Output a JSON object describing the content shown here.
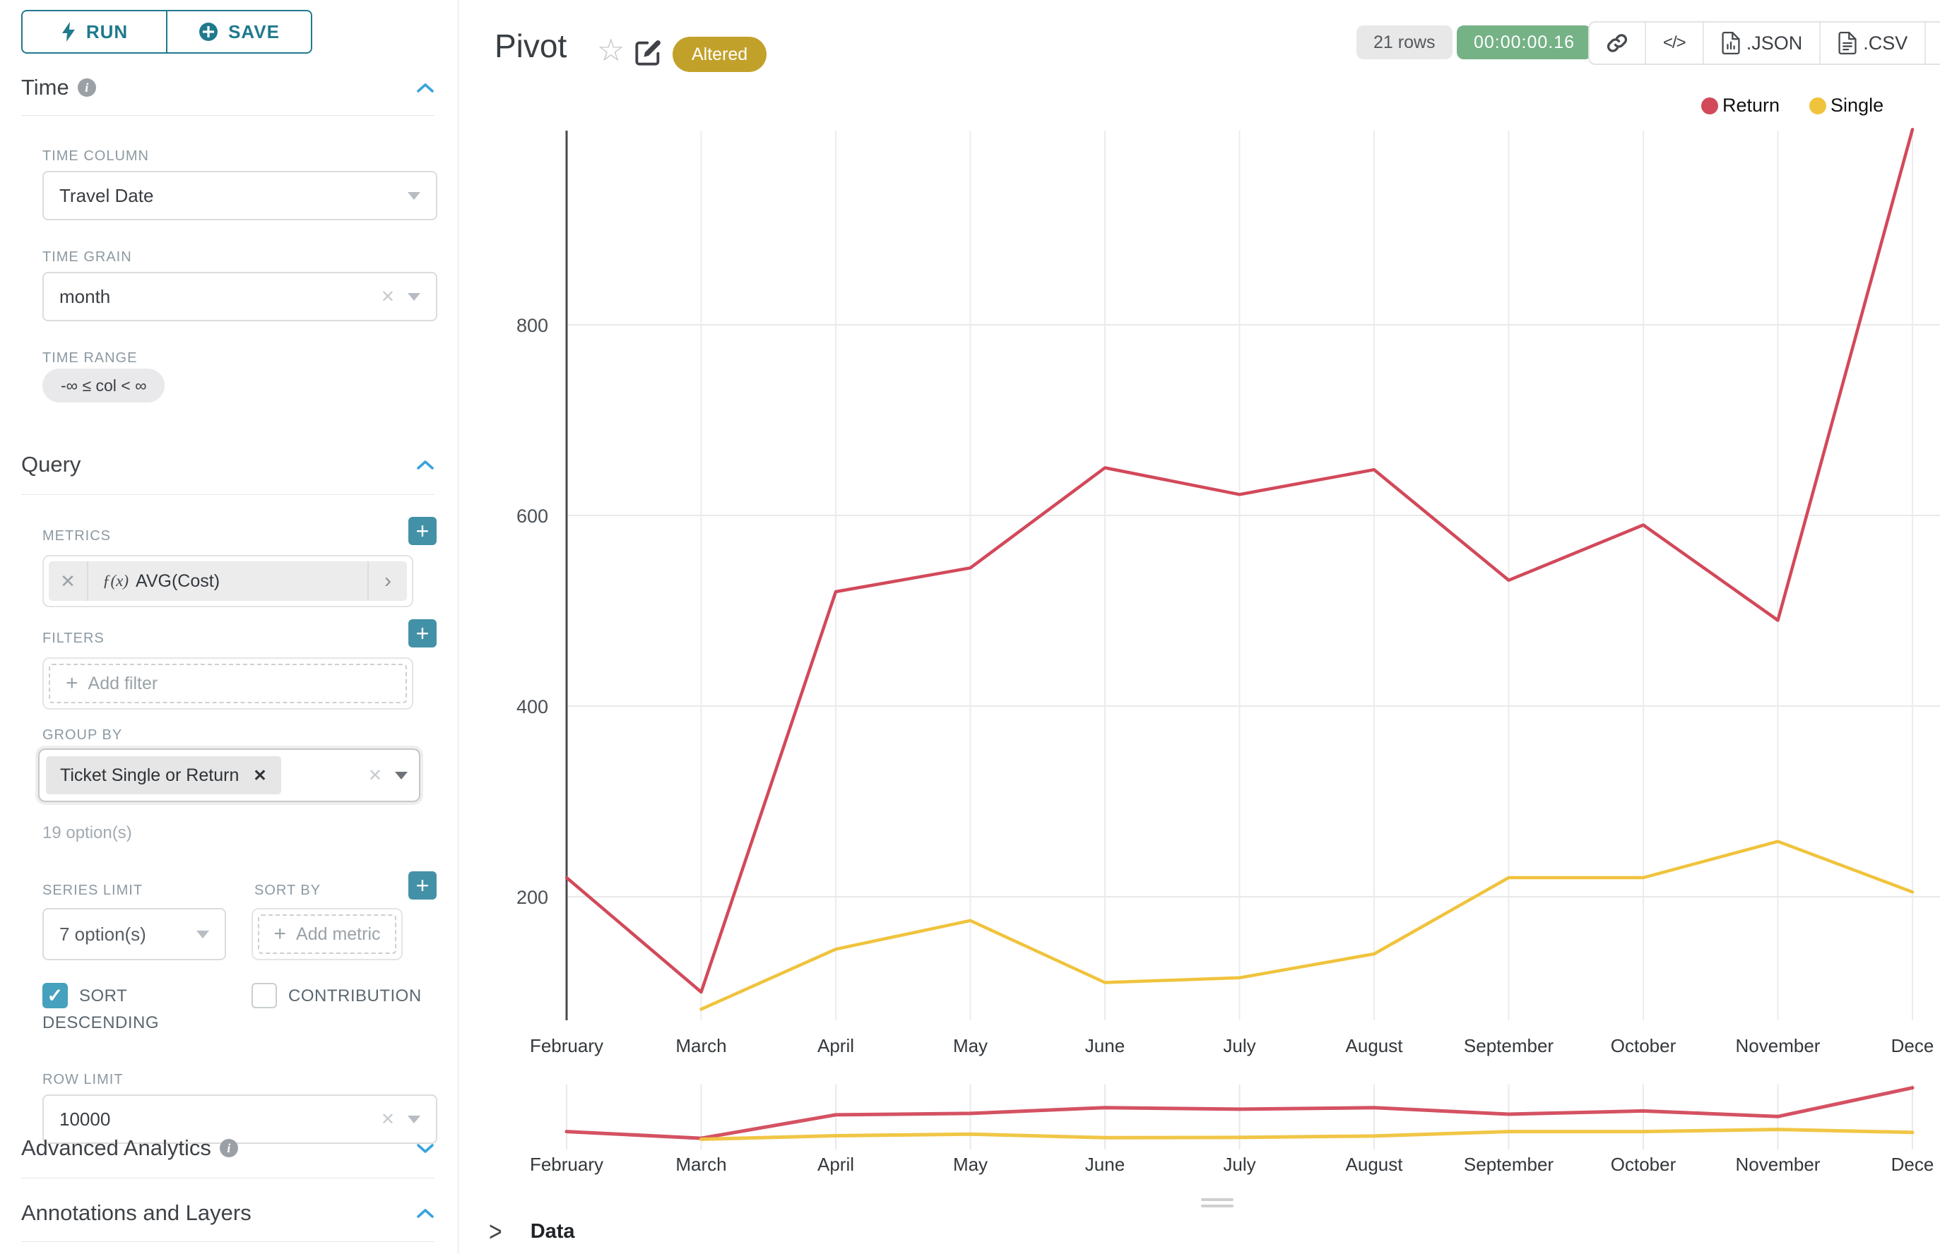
{
  "sidebar": {
    "run_label": "RUN",
    "save_label": "SAVE",
    "time_section": {
      "title": "Time"
    },
    "time_column": {
      "label": "TIME COLUMN",
      "value": "Travel Date"
    },
    "time_grain": {
      "label": "TIME GRAIN",
      "value": "month"
    },
    "time_range": {
      "label": "TIME RANGE",
      "value": "-∞ ≤ col < ∞"
    },
    "query_section": {
      "title": "Query"
    },
    "metrics": {
      "label": "METRICS",
      "metric_prefix": "ƒ(x)",
      "metric_name": "AVG(Cost)"
    },
    "filters": {
      "label": "FILTERS",
      "placeholder": "Add filter"
    },
    "group_by": {
      "label": "GROUP BY",
      "chip": "Ticket Single or Return",
      "hint": "19 option(s)"
    },
    "series_limit": {
      "label": "SERIES LIMIT",
      "value": "7 option(s)"
    },
    "sort_by": {
      "label": "SORT BY",
      "placeholder": "Add metric"
    },
    "sort_descending": {
      "label": "SORT DESCENDING",
      "checked": true
    },
    "contribution": {
      "label": "CONTRIBUTION",
      "checked": false
    },
    "row_limit": {
      "label": "ROW LIMIT",
      "value": "10000"
    },
    "advanced_analytics": {
      "title": "Advanced Analytics"
    },
    "annotations": {
      "title": "Annotations and Layers"
    }
  },
  "header": {
    "title": "Pivot",
    "altered_badge": "Altered",
    "rows_badge": "21 rows",
    "timer_badge": "00:00:00.16",
    "buttons": {
      "code_label": "</>",
      "json_label": ".JSON",
      "csv_label": ".CSV"
    }
  },
  "data_panel": {
    "title": "Data"
  },
  "chart_data": {
    "type": "line",
    "title": "Pivot",
    "categories": [
      "February",
      "March",
      "April",
      "May",
      "June",
      "July",
      "August",
      "September",
      "October",
      "November",
      "December"
    ],
    "x_labels_display": [
      "February",
      "March",
      "April",
      "May",
      "June",
      "July",
      "August",
      "September",
      "October",
      "November",
      "Dece"
    ],
    "series": [
      {
        "name": "Return",
        "color": "#d2495a",
        "values": [
          220,
          100,
          520,
          545,
          650,
          622,
          648,
          532,
          590,
          490,
          1005
        ]
      },
      {
        "name": "Single",
        "color": "#f0c33c",
        "values": [
          null,
          82,
          145,
          175,
          110,
          115,
          140,
          220,
          220,
          258,
          205
        ]
      }
    ],
    "yticks": [
      200,
      400,
      600,
      800
    ],
    "ylim": [
      70,
      1010
    ],
    "xlabel": "",
    "ylabel": "",
    "grid": true,
    "legend_position": "top-right",
    "has_range_selector_preview": true
  }
}
